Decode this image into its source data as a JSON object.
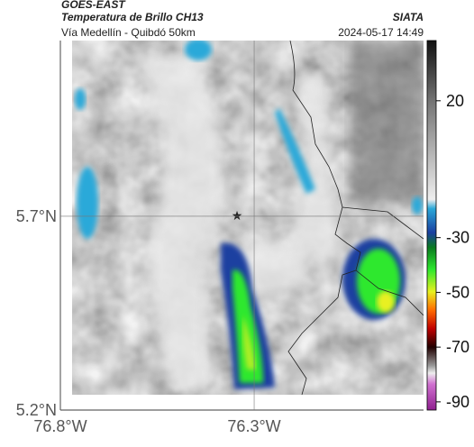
{
  "header": {
    "satellite": "GOES-EAST",
    "title": "Temperatura de Brillo CH13",
    "source": "SIATA",
    "subtitle": "Vía Medellín - Quibdó 50km",
    "datetime": "2024-05-17 14:49"
  },
  "map": {
    "lat_range": [
      5.2,
      6.153
    ],
    "lon_range": [
      -76.8,
      -75.863
    ],
    "lat_ticks": [
      {
        "value": 5.7,
        "label": "5.7°N"
      },
      {
        "value": 5.2,
        "label": "5.2°N"
      }
    ],
    "lon_ticks": [
      {
        "value": -76.8,
        "label": "76.8°W"
      },
      {
        "value": -76.3,
        "label": "76.3°W"
      }
    ],
    "colorbar": {
      "range": [
        -93,
        42
      ],
      "ticks": [
        20,
        -30,
        -50,
        -70,
        -90
      ]
    }
  }
}
